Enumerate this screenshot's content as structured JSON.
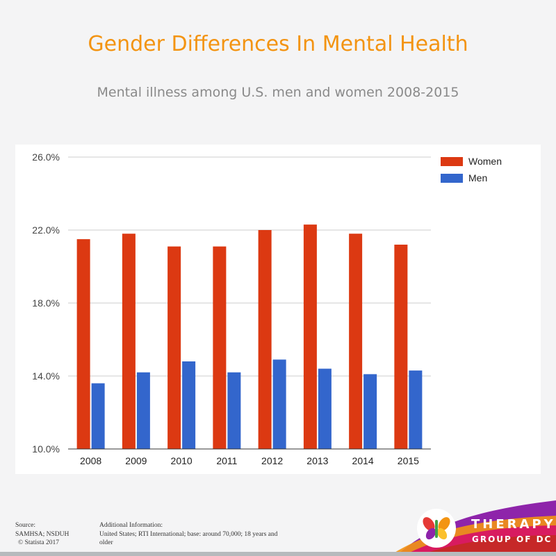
{
  "header": {
    "title": "Gender Differences In Mental Health",
    "subtitle": "Mental illness among U.S. men and women 2008-2015"
  },
  "chart_data": {
    "type": "bar",
    "categories": [
      "2008",
      "2009",
      "2010",
      "2011",
      "2012",
      "2013",
      "2014",
      "2015"
    ],
    "series": [
      {
        "name": "Women",
        "color": "#dc3912",
        "values": [
          21.5,
          21.8,
          21.1,
          21.1,
          22.0,
          22.3,
          21.8,
          21.2
        ]
      },
      {
        "name": "Men",
        "color": "#3366cc",
        "values": [
          13.6,
          14.2,
          14.8,
          14.2,
          14.9,
          14.4,
          14.1,
          14.3
        ]
      }
    ],
    "yticks": [
      "26.0%",
      "22.0%",
      "18.0%",
      "14.0%",
      "10.0%"
    ],
    "ylim": [
      10,
      26
    ],
    "grid": true,
    "legend_position": "top-right"
  },
  "footer": {
    "source_label": "Source:",
    "source_lines": [
      "SAMHSA; NSDUH",
      "© Statista 2017"
    ],
    "info_label": "Additional Information:",
    "info_lines": [
      "United States; RTI International; base: around 70,000; 18 years and",
      "older"
    ]
  },
  "brand": {
    "name": "THERAPY",
    "subname": "GROUP OF DC",
    "colors": [
      "#e53935",
      "#f39412",
      "#fbc02d",
      "#8e24aa",
      "#d81b60",
      "#43a047"
    ]
  }
}
